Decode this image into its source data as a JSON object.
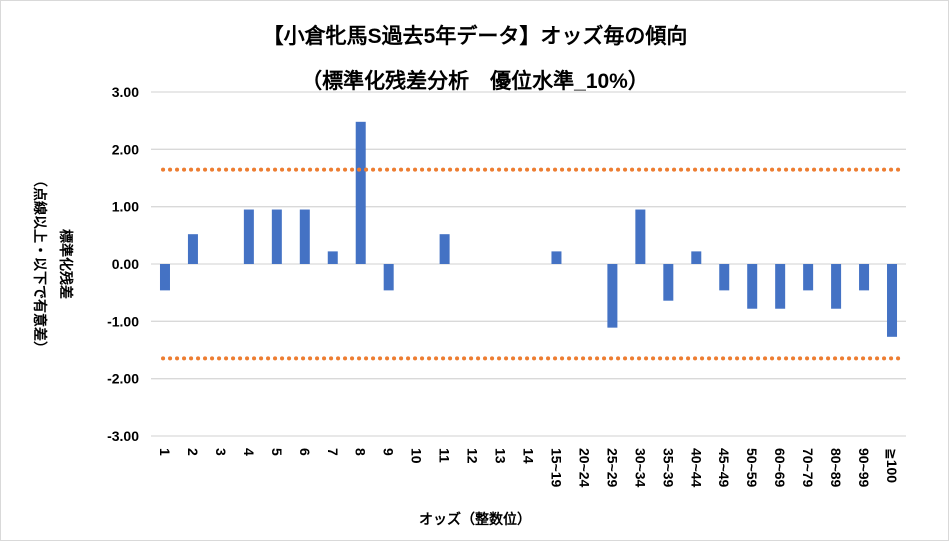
{
  "chart_data": {
    "type": "bar",
    "title": "【小倉牝馬S過去5年データ】オッズ毎の傾向",
    "subtitle": "（標準化残差分析　優位水準_10%）",
    "xlabel": "オッズ（整数位）",
    "ylabel": "標準化残差",
    "ylabel2": "（点線以上・以下で有意差）",
    "ylim": [
      -3,
      3
    ],
    "yticks": [
      "3.00",
      "2.00",
      "1.00",
      "0.00",
      "-1.00",
      "-2.00",
      "-3.00"
    ],
    "grid": true,
    "categories": [
      "1",
      "2",
      "3",
      "4",
      "5",
      "6",
      "7",
      "8",
      "9",
      "10",
      "11",
      "12",
      "13",
      "14",
      "15~19",
      "20~24",
      "25~29",
      "30~34",
      "35~39",
      "40~44",
      "45~49",
      "50~59",
      "60~69",
      "70~79",
      "80~89",
      "90~99",
      "≧100"
    ],
    "values": [
      -0.46,
      0.52,
      0,
      0.95,
      0.95,
      0.95,
      0.22,
      2.48,
      -0.46,
      0,
      0.52,
      0,
      0,
      0,
      0.22,
      0,
      -1.11,
      0.95,
      -0.64,
      0.22,
      -0.46,
      -0.78,
      -0.78,
      -0.46,
      -0.78,
      -0.46,
      -1.27
    ],
    "thresholds": [
      1.645,
      -1.645
    ],
    "colors": {
      "bar": "#4472C4",
      "threshold": "#ED7D31",
      "grid": "#D9D9D9"
    }
  }
}
